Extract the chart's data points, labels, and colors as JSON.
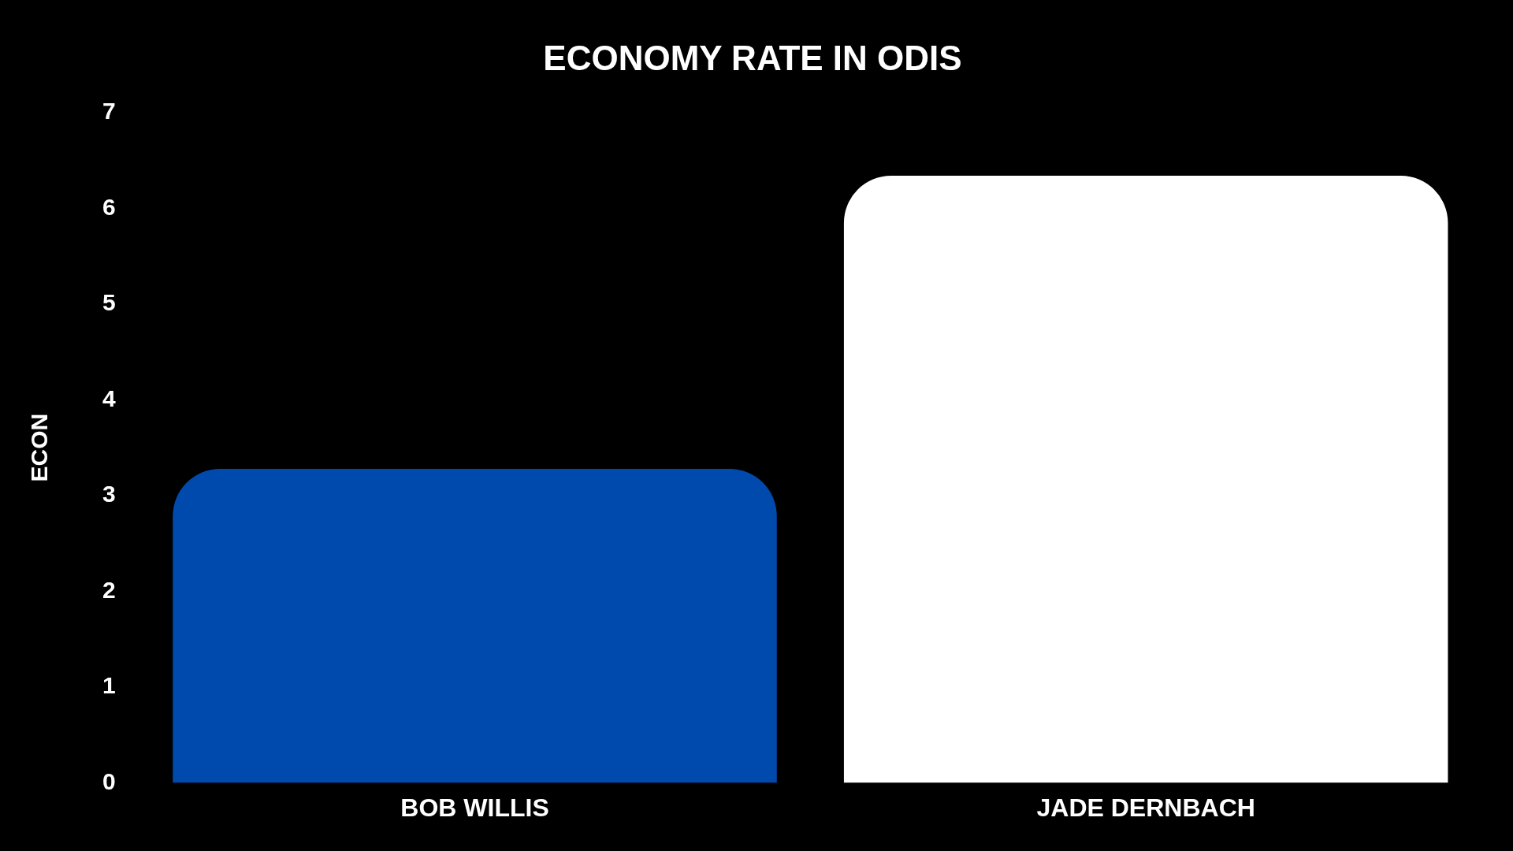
{
  "chart_data": {
    "type": "bar",
    "title": "ECONOMY RATE IN ODIS",
    "ylabel": "ECON",
    "categories": [
      "BOB WILLIS",
      "JADE DERNBACH"
    ],
    "values": [
      3.28,
      6.34
    ],
    "colors": [
      "#004aad",
      "#ffffff"
    ],
    "ylim": [
      0,
      7
    ],
    "yticks": [
      0,
      1,
      2,
      3,
      4,
      5,
      6,
      7
    ],
    "grid": false,
    "legend": false
  }
}
